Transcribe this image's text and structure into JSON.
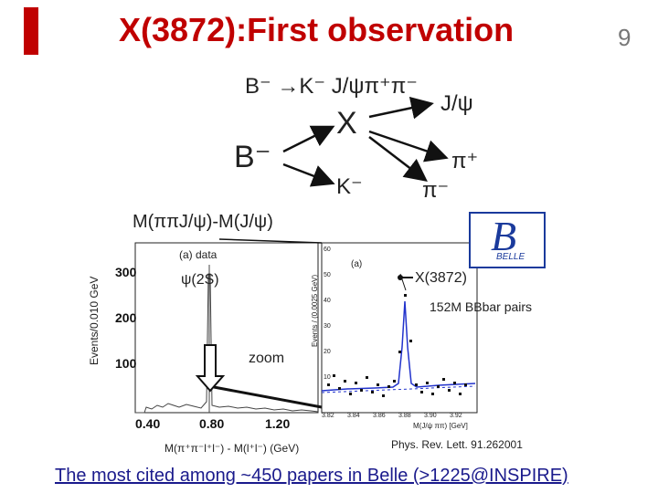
{
  "slide": {
    "title": "X(3872):First observation",
    "page_number": "9"
  },
  "diagram": {
    "decay": "B⁻ →K⁻ J/ψπ⁺π⁻",
    "nodes": {
      "b": "B⁻",
      "x": "X",
      "k": "K⁻",
      "jpsi": "J/ψ",
      "piplus": "π⁺",
      "piminus": "π⁻"
    }
  },
  "plots": {
    "mass_label": "M(ππJ/ψ)-M(J/ψ)",
    "left": {
      "legend": "(a) data",
      "ylabel": "Events/0.010 GeV",
      "xlabel": "M(π⁺π⁻l⁺l⁻) - M(l⁺l⁻) (GeV)",
      "yticks": [
        "300",
        "200",
        "100"
      ],
      "xticks": [
        "0.40",
        "0.80",
        "1.20"
      ],
      "peak_label": "ψ(2S)",
      "zoom_label": "zoom"
    },
    "right": {
      "legend": "(a)",
      "ylabel": "Events / (0.0025 GeV)",
      "xlabel": "M(J/ψ ππ) [GeV]",
      "xticks": [
        "3.82",
        "3.84",
        "3.86",
        "3.88",
        "3.90",
        "3.92"
      ],
      "yticks": [
        "60",
        "50",
        "40",
        "30",
        "20",
        "10"
      ],
      "peak_label": "X(3872)",
      "pairs_label": "152M BBbar pairs"
    }
  },
  "belle_logo": {
    "letter": "B",
    "name": "BELLE"
  },
  "citation": "Phys. Rev. Lett. 91.262001",
  "footer": "The most cited among ~450 papers in Belle (>1225@INSPIRE)"
}
